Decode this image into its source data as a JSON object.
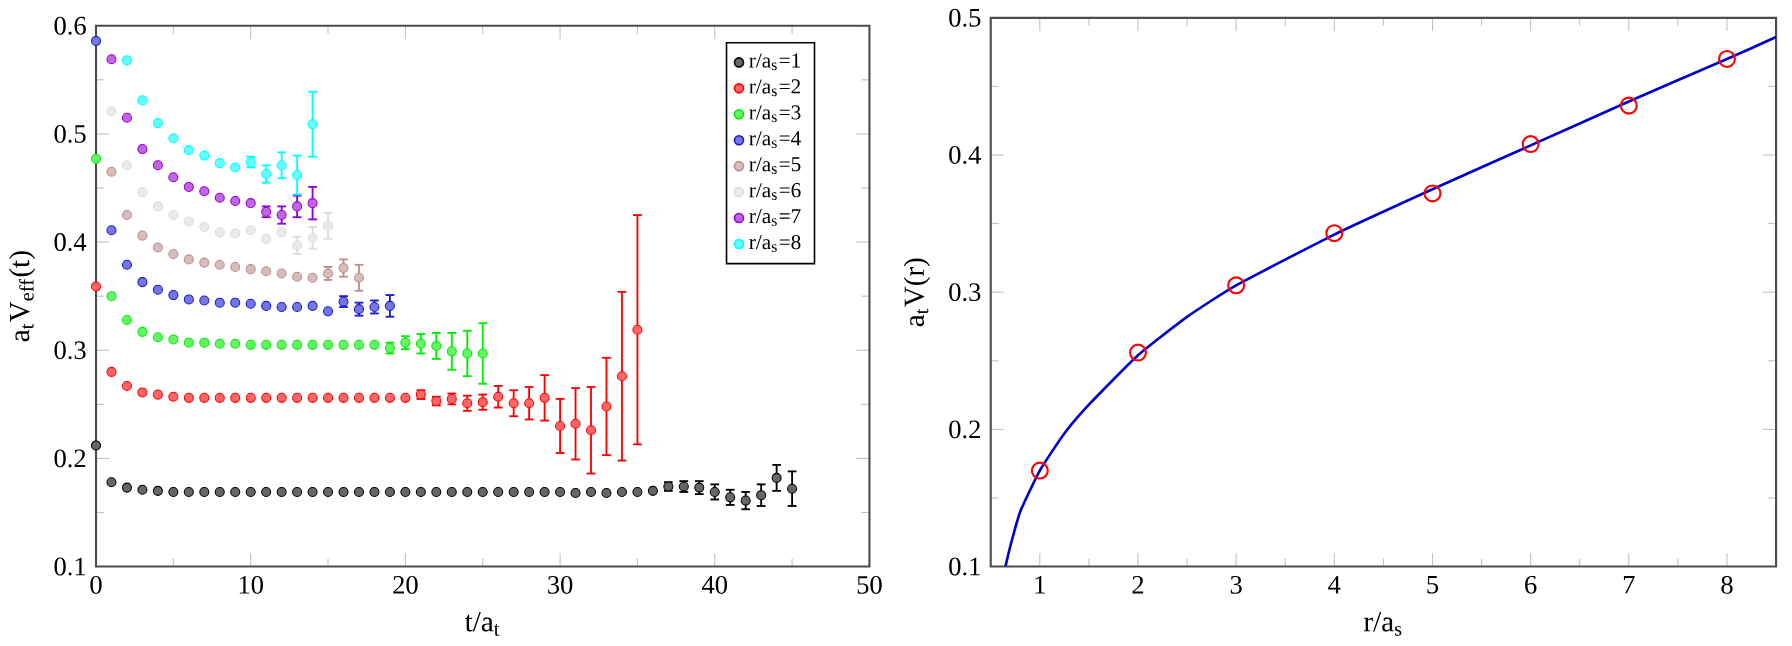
{
  "chart_data": [
    {
      "type": "scatter",
      "xlabel": "t/a$_{t}$",
      "ylabel": "a$_{t}$V$_{eff}$(t)",
      "xlim": [
        0,
        50
      ],
      "ylim": [
        0.1,
        0.6
      ],
      "xticks": [
        0,
        10,
        20,
        30,
        40,
        50
      ],
      "yticks": [
        0.1,
        0.2,
        0.3,
        0.4,
        0.5,
        0.6
      ],
      "legend": "top right",
      "marker": "circle",
      "series": [
        {
          "name": "r/a$_{s}$=1",
          "color": "#000000",
          "x": [
            0,
            1,
            2,
            3,
            4,
            5,
            6,
            7,
            8,
            9,
            10,
            11,
            12,
            13,
            14,
            15,
            16,
            17,
            18,
            19,
            20,
            21,
            22,
            23,
            24,
            25,
            26,
            27,
            28,
            29,
            30,
            31,
            32,
            33,
            34,
            35,
            36,
            37,
            38,
            39,
            40,
            41,
            42,
            43,
            44,
            45
          ],
          "values": [
            0.212,
            0.178,
            0.173,
            0.171,
            0.17,
            0.169,
            0.169,
            0.169,
            0.169,
            0.169,
            0.169,
            0.169,
            0.169,
            0.169,
            0.169,
            0.169,
            0.169,
            0.169,
            0.169,
            0.169,
            0.169,
            0.169,
            0.169,
            0.169,
            0.169,
            0.169,
            0.169,
            0.169,
            0.169,
            0.169,
            0.169,
            0.168,
            0.169,
            0.168,
            0.169,
            0.169,
            0.17,
            0.174,
            0.174,
            0.173,
            0.169,
            0.164,
            0.161,
            0.166,
            0.182,
            0.172
          ],
          "errors": [
            null,
            null,
            null,
            null,
            null,
            null,
            null,
            null,
            null,
            null,
            null,
            null,
            null,
            null,
            null,
            null,
            null,
            null,
            null,
            null,
            null,
            null,
            null,
            null,
            null,
            null,
            null,
            null,
            null,
            null,
            null,
            null,
            null,
            null,
            null,
            null,
            null,
            0.004,
            0.005,
            0.006,
            0.007,
            0.007,
            0.008,
            0.01,
            0.012,
            0.016
          ]
        },
        {
          "name": "r/a$_{s}$=2",
          "color": "#ff0000",
          "x": [
            0,
            1,
            2,
            3,
            4,
            5,
            6,
            7,
            8,
            9,
            10,
            11,
            12,
            13,
            14,
            15,
            16,
            17,
            18,
            19,
            20,
            21,
            22,
            23,
            24,
            25,
            26,
            27,
            28,
            29,
            30,
            31,
            32,
            33,
            34,
            35
          ],
          "values": [
            0.359,
            0.28,
            0.267,
            0.261,
            0.259,
            0.257,
            0.256,
            0.256,
            0.256,
            0.256,
            0.256,
            0.256,
            0.256,
            0.256,
            0.256,
            0.256,
            0.256,
            0.256,
            0.256,
            0.256,
            0.256,
            0.259,
            0.253,
            0.255,
            0.251,
            0.252,
            0.257,
            0.251,
            0.251,
            0.256,
            0.23,
            0.232,
            0.226,
            0.248,
            0.276,
            0.319
          ],
          "errors": [
            null,
            null,
            null,
            null,
            null,
            null,
            null,
            null,
            null,
            null,
            null,
            null,
            null,
            null,
            null,
            null,
            null,
            null,
            null,
            null,
            null,
            0.004,
            0.004,
            0.005,
            0.007,
            0.007,
            0.01,
            0.012,
            0.015,
            0.021,
            0.025,
            0.033,
            0.04,
            0.045,
            0.078,
            0.106
          ]
        },
        {
          "name": "r/a$_{s}$=3",
          "color": "#00ee00",
          "x": [
            0,
            1,
            2,
            3,
            4,
            5,
            6,
            7,
            8,
            9,
            10,
            11,
            12,
            13,
            14,
            15,
            16,
            17,
            18,
            19,
            20,
            21,
            22,
            23,
            24,
            25
          ],
          "values": [
            0.477,
            0.35,
            0.328,
            0.317,
            0.312,
            0.31,
            0.307,
            0.307,
            0.306,
            0.306,
            0.305,
            0.305,
            0.305,
            0.305,
            0.305,
            0.305,
            0.305,
            0.305,
            0.305,
            0.302,
            0.307,
            0.306,
            0.304,
            0.299,
            0.297,
            0.297
          ],
          "errors": [
            null,
            null,
            null,
            null,
            null,
            null,
            null,
            null,
            null,
            null,
            null,
            null,
            null,
            null,
            null,
            null,
            null,
            null,
            null,
            0.005,
            0.006,
            0.009,
            0.012,
            0.017,
            0.021,
            0.028
          ]
        },
        {
          "name": "r/a$_{s}$=4",
          "color": "#1a1ad0",
          "x": [
            0,
            1,
            2,
            3,
            4,
            5,
            6,
            7,
            8,
            9,
            10,
            11,
            12,
            13,
            14,
            15,
            16,
            17,
            18,
            19
          ],
          "values": [
            0.586,
            0.411,
            0.379,
            0.363,
            0.356,
            0.351,
            0.347,
            0.346,
            0.344,
            0.344,
            0.343,
            0.341,
            0.34,
            0.34,
            0.341,
            0.336,
            0.345,
            0.338,
            0.34,
            0.341
          ],
          "errors": [
            null,
            null,
            null,
            null,
            null,
            null,
            null,
            null,
            null,
            null,
            null,
            null,
            null,
            null,
            null,
            null,
            0.005,
            0.006,
            0.006,
            0.01
          ]
        },
        {
          "name": "r/a$_{s}$=5",
          "color": "#bc8f8f",
          "x": [
            1,
            2,
            3,
            4,
            5,
            6,
            7,
            8,
            9,
            10,
            11,
            12,
            13,
            14,
            15,
            16,
            17
          ],
          "values": [
            0.465,
            0.425,
            0.406,
            0.395,
            0.389,
            0.384,
            0.381,
            0.379,
            0.377,
            0.375,
            0.373,
            0.371,
            0.368,
            0.367,
            0.371,
            0.376,
            0.367
          ],
          "errors": [
            null,
            null,
            null,
            null,
            null,
            null,
            null,
            null,
            null,
            null,
            null,
            null,
            null,
            null,
            0.006,
            0.008,
            0.012
          ]
        },
        {
          "name": "r/a$_{s}$=6",
          "color": "#dcdcdc",
          "x": [
            1,
            2,
            3,
            4,
            5,
            6,
            7,
            8,
            9,
            10,
            11,
            12,
            13,
            14,
            15
          ],
          "values": [
            0.521,
            0.471,
            0.446,
            0.433,
            0.425,
            0.419,
            0.414,
            0.409,
            0.408,
            0.411,
            0.403,
            0.409,
            0.397,
            0.404,
            0.415
          ],
          "errors": [
            null,
            null,
            null,
            null,
            null,
            null,
            null,
            null,
            null,
            null,
            null,
            null,
            0.008,
            0.01,
            0.012
          ]
        },
        {
          "name": "r/a$_{s}$=7",
          "color": "#9400d3",
          "x": [
            1,
            2,
            3,
            4,
            5,
            6,
            7,
            8,
            9,
            10,
            11,
            12,
            13,
            14
          ],
          "values": [
            0.569,
            0.515,
            0.486,
            0.471,
            0.46,
            0.451,
            0.447,
            0.441,
            0.438,
            0.436,
            0.428,
            0.425,
            0.433,
            0.436
          ],
          "errors": [
            null,
            null,
            null,
            null,
            null,
            null,
            null,
            null,
            null,
            null,
            0.005,
            0.008,
            0.01,
            0.015
          ]
        },
        {
          "name": "r/a$_{s}$=8",
          "color": "#00ffff",
          "x": [
            2,
            3,
            4,
            5,
            6,
            7,
            8,
            9,
            10,
            11,
            12,
            13,
            14
          ],
          "values": [
            0.568,
            0.531,
            0.51,
            0.496,
            0.485,
            0.48,
            0.473,
            0.469,
            0.474,
            0.463,
            0.471,
            0.462,
            0.509
          ],
          "errors": [
            null,
            null,
            null,
            null,
            null,
            null,
            null,
            null,
            0.005,
            0.008,
            0.012,
            0.018,
            0.03
          ]
        }
      ]
    },
    {
      "type": "scatter",
      "xlabel": "r/a$_{s}$",
      "ylabel": "a$_{t}$V(r)",
      "xlim": [
        0.5,
        8.5
      ],
      "ylim": [
        0.1,
        0.5
      ],
      "xticks": [
        1,
        2,
        3,
        4,
        5,
        6,
        7,
        8
      ],
      "yticks": [
        0.1,
        0.2,
        0.3,
        0.4,
        0.5
      ],
      "marker": "circle",
      "series": [
        {
          "color": "#ff0000",
          "x": [
            1,
            2,
            3,
            4,
            5,
            6,
            7,
            8
          ],
          "values": [
            0.17,
            0.256,
            0.305,
            0.343,
            0.372,
            0.408,
            0.436,
            0.47
          ]
        },
        {
          "type": "line",
          "marker": "none",
          "color": "#0000cc",
          "x": [
            0.65,
            0.7,
            0.8,
            1,
            1.25,
            1.5,
            2,
            2.5,
            3,
            4,
            5,
            6,
            7,
            8,
            8.5
          ],
          "values": [
            0.1,
            0.115,
            0.14,
            0.17,
            0.197,
            0.218,
            0.254,
            0.282,
            0.305,
            0.342,
            0.375,
            0.407,
            0.439,
            0.47,
            0.486
          ]
        }
      ]
    }
  ]
}
